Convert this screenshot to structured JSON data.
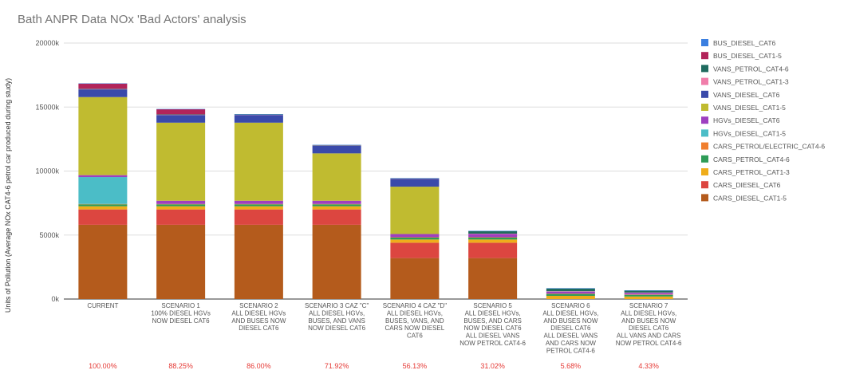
{
  "chart_data": {
    "type": "bar",
    "stacked": true,
    "title": "Bath ANPR Data NOx 'Bad Actors' analysis",
    "ylabel": "Units of Pollution (Average NOx CAT4-6 petrol car produced during study)",
    "xlabel": "",
    "ylim": [
      0,
      20000
    ],
    "yticks": [
      "0k",
      "5000k",
      "10000k",
      "15000k",
      "20000k"
    ],
    "ytick_values": [
      0,
      5000,
      10000,
      15000,
      20000
    ],
    "grid": true,
    "legend_position": "right",
    "categories": [
      [
        "CURRENT"
      ],
      [
        "SCENARIO 1",
        "100% DIESEL HGVs",
        "NOW DIESEL CAT6"
      ],
      [
        "SCENARIO 2",
        "ALL DIESEL HGVs",
        "AND BUSES NOW",
        "DIESEL CAT6"
      ],
      [
        "SCENARIO 3 CAZ \"C\"",
        "ALL DIESEL HGVs,",
        "BUSES, AND VANS",
        "NOW DIESEL CAT6"
      ],
      [
        "SCENARIO 4 CAZ \"D\"",
        "ALL DIESEL HGVs,",
        "BUSES, VANS, AND",
        "CARS NOW DIESEL",
        "CAT6"
      ],
      [
        "SCENARIO 5",
        "ALL DIESEL HGVs,",
        "BUSES, AND CARS",
        "NOW DIESEL CAT6",
        "",
        "ALL DIESEL VANS",
        "NOW PETROL CAT4-6"
      ],
      [
        "SCENARIO 6",
        "ALL DIESEL HGVs,",
        "AND BUSES NOW",
        "DIESEL CAT6",
        "",
        "ALL DIESEL VANS",
        "AND CARS NOW",
        "PETROL CAT4-6"
      ],
      [
        "SCENARIO 7",
        "ALL DIESEL HGVs,",
        "AND BUSES NOW",
        "DIESEL CAT6",
        "",
        "ALL VANS AND CARS",
        "NOW PETROL CAT4-6"
      ]
    ],
    "percentages": [
      "100.00%",
      "88.25%",
      "86.00%",
      "71.92%",
      "56.13%",
      "31.02%",
      "5.68%",
      "4.33%"
    ],
    "series": [
      {
        "name": "CARS_DIESEL_CAT1-5",
        "color": "#b45b1c",
        "values": [
          5800,
          5800,
          5800,
          5800,
          3200,
          3200,
          0,
          0
        ]
      },
      {
        "name": "CARS_DIESEL_CAT6",
        "color": "#dc4640",
        "values": [
          1200,
          1200,
          1200,
          1200,
          1200,
          1200,
          0,
          0
        ]
      },
      {
        "name": "CARS_PETROL_CAT1-3",
        "color": "#efad1b",
        "values": [
          250,
          250,
          250,
          250,
          250,
          250,
          250,
          200
        ]
      },
      {
        "name": "CARS_PETROL_CAT4-6",
        "color": "#2e9c57",
        "values": [
          150,
          150,
          150,
          150,
          150,
          150,
          150,
          130
        ]
      },
      {
        "name": "CARS_PETROL/ELECTRIC_CAT4-6",
        "color": "#f07f2f",
        "values": [
          30,
          30,
          30,
          30,
          30,
          30,
          30,
          30
        ]
      },
      {
        "name": "HGVs_DIESEL_CAT1-5",
        "color": "#4bbdc7",
        "values": [
          2100,
          0,
          0,
          0,
          0,
          0,
          0,
          0
        ]
      },
      {
        "name": "HGVs_DIESEL_CAT6",
        "color": "#9e3fc0",
        "values": [
          150,
          250,
          250,
          250,
          250,
          250,
          150,
          120
        ]
      },
      {
        "name": "VANS_DIESEL_CAT1-5",
        "color": "#c0bb30",
        "values": [
          6100,
          6100,
          6100,
          3700,
          3700,
          0,
          0,
          0
        ]
      },
      {
        "name": "VANS_DIESEL_CAT6",
        "color": "#3a4aaa",
        "values": [
          600,
          600,
          600,
          600,
          600,
          0,
          0,
          0
        ]
      },
      {
        "name": "VANS_PETROL_CAT1-3",
        "color": "#f07daa",
        "values": [
          30,
          30,
          30,
          30,
          30,
          30,
          30,
          30
        ]
      },
      {
        "name": "VANS_PETROL_CAT4-6",
        "color": "#1f6b5f",
        "values": [
          20,
          20,
          20,
          20,
          20,
          200,
          220,
          150
        ]
      },
      {
        "name": "BUS_DIESEL_CAT1-5",
        "color": "#b2245a",
        "values": [
          400,
          400,
          0,
          0,
          0,
          0,
          0,
          0
        ]
      },
      {
        "name": "BUS_DIESEL_CAT6",
        "color": "#3b7fe0",
        "values": [
          20,
          20,
          20,
          20,
          20,
          20,
          20,
          20
        ]
      }
    ],
    "legend_order": [
      "BUS_DIESEL_CAT6",
      "BUS_DIESEL_CAT1-5",
      "VANS_PETROL_CAT4-6",
      "VANS_PETROL_CAT1-3",
      "VANS_DIESEL_CAT6",
      "VANS_DIESEL_CAT1-5",
      "HGVs_DIESEL_CAT6",
      "HGVs_DIESEL_CAT1-5",
      "CARS_PETROL/ELECTRIC_CAT4-6",
      "CARS_PETROL_CAT4-6",
      "CARS_PETROL_CAT1-3",
      "CARS_DIESEL_CAT6",
      "CARS_DIESEL_CAT1-5"
    ]
  }
}
